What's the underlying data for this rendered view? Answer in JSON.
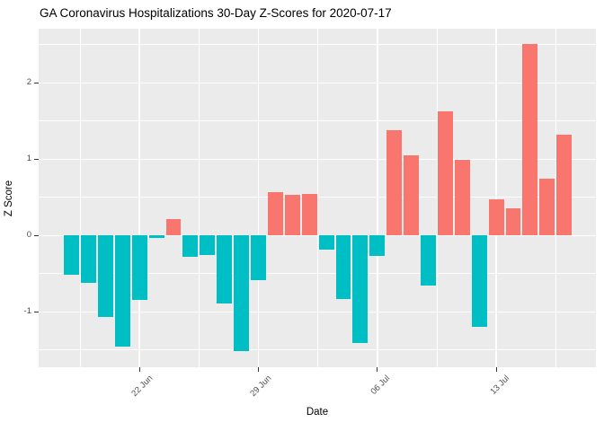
{
  "chart_data": {
    "type": "bar",
    "title": "GA Coronavirus Hospitalizations 30-Day Z-Scores for 2020-07-17",
    "xlabel": "Date",
    "ylabel": "Z Score",
    "categories": [
      "2020-06-18",
      "2020-06-19",
      "2020-06-20",
      "2020-06-21",
      "2020-06-22",
      "2020-06-23",
      "2020-06-24",
      "2020-06-25",
      "2020-06-26",
      "2020-06-27",
      "2020-06-28",
      "2020-06-29",
      "2020-06-30",
      "2020-07-01",
      "2020-07-02",
      "2020-07-03",
      "2020-07-04",
      "2020-07-05",
      "2020-07-06",
      "2020-07-07",
      "2020-07-08",
      "2020-07-09",
      "2020-07-10",
      "2020-07-11",
      "2020-07-12",
      "2020-07-13",
      "2020-07-14",
      "2020-07-15",
      "2020-07-16",
      "2020-07-17"
    ],
    "values": [
      -0.52,
      -0.62,
      -1.07,
      -1.45,
      -0.84,
      -0.03,
      0.21,
      -0.28,
      -0.25,
      -0.89,
      -1.51,
      -0.58,
      0.57,
      0.53,
      0.55,
      -0.19,
      -0.83,
      -1.41,
      -0.27,
      1.38,
      1.05,
      -0.65,
      1.63,
      0.99,
      -1.2,
      0.48,
      0.36,
      2.51,
      0.75,
      1.32
    ],
    "x_ticks": [
      {
        "index": 4,
        "label": "22 Jun"
      },
      {
        "index": 11,
        "label": "29 Jun"
      },
      {
        "index": 18,
        "label": "06 Jul"
      },
      {
        "index": 25,
        "label": "13 Jul"
      }
    ],
    "x_minor_half_indices": [
      0.5,
      7.5,
      14.5,
      21.5,
      28.5
    ],
    "y_ticks": [
      {
        "value": 2,
        "label": "2"
      },
      {
        "value": 1,
        "label": "1"
      },
      {
        "value": 0,
        "label": "0"
      },
      {
        "value": -1,
        "label": "-1"
      }
    ],
    "y_minor": [
      2.5,
      1.5,
      0.5,
      -0.5,
      -1.5
    ],
    "ylim": [
      -1.73,
      2.71
    ],
    "grid": "on",
    "legend": "none",
    "colors": {
      "positive_bar": "#F8766D",
      "negative_bar": "#00BFC4",
      "panel_bg": "#EBEBEB",
      "gridline": "#FFFFFF",
      "axis_text": "#4D4D4D",
      "tick_mark": "#333333",
      "title_text": "#000000"
    }
  }
}
